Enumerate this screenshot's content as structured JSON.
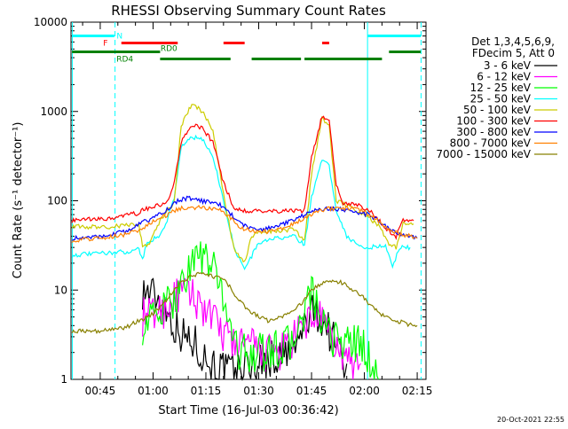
{
  "chart_data": {
    "type": "line",
    "title": "RHESSI Observing Summary Count Rates",
    "xlabel": "Start Time (16-Jul-03 00:36:42)",
    "ylabel": "Count Rate (s⁻¹ detector⁻¹)",
    "y_scale": "log",
    "xlim_minutes": [
      36.7,
      137.5
    ],
    "ylim": [
      1,
      10000
    ],
    "x_ticks": [
      {
        "label": "00:45",
        "minutes": 45
      },
      {
        "label": "01:00",
        "minutes": 60
      },
      {
        "label": "01:15",
        "minutes": 75
      },
      {
        "label": "01:30",
        "minutes": 90
      },
      {
        "label": "01:45",
        "minutes": 105
      },
      {
        "label": "02:00",
        "minutes": 120
      },
      {
        "label": "02:15",
        "minutes": 135
      }
    ],
    "y_ticks": [
      {
        "label": "1",
        "value": 1
      },
      {
        "label": "10",
        "value": 10
      },
      {
        "label": "100",
        "value": 100
      },
      {
        "label": "1000",
        "value": 1000
      },
      {
        "label": "10000",
        "value": 10000
      }
    ],
    "legend": {
      "position": "right",
      "header": [
        "Det 1,3,4,5,6,9,",
        "FDecim 5, Att 0"
      ]
    },
    "series": [
      {
        "name": "3 - 6 keV",
        "color": "#000000",
        "points": [
          [
            57,
            10
          ],
          [
            60,
            9
          ],
          [
            63,
            7
          ],
          [
            66,
            4
          ],
          [
            69,
            3
          ],
          [
            72,
            2.5
          ],
          [
            75,
            1.7
          ],
          [
            78,
            1.4
          ],
          [
            81,
            1.2
          ],
          [
            100,
            2
          ],
          [
            103,
            4
          ],
          [
            106,
            6
          ],
          [
            109,
            4
          ],
          [
            112,
            2.5
          ],
          [
            115,
            1.5
          ]
        ]
      },
      {
        "name": "6 - 12 keV",
        "color": "#ff00ff",
        "points": [
          [
            57,
            5
          ],
          [
            60,
            5.5
          ],
          [
            63,
            6
          ],
          [
            66,
            8
          ],
          [
            69,
            9.5
          ],
          [
            72,
            8
          ],
          [
            75,
            6
          ],
          [
            78,
            4
          ],
          [
            81,
            3
          ],
          [
            84,
            2.5
          ],
          [
            87,
            2.5
          ],
          [
            90,
            2
          ],
          [
            93,
            2
          ],
          [
            96,
            2
          ],
          [
            99,
            2.5
          ],
          [
            102,
            3.5
          ],
          [
            105,
            5
          ],
          [
            107,
            5
          ],
          [
            110,
            3
          ],
          [
            113,
            2
          ],
          [
            116,
            1.5
          ],
          [
            119,
            1.5
          ]
        ]
      },
      {
        "name": "12 - 25 keV",
        "color": "#00ff00",
        "points": [
          [
            57,
            4
          ],
          [
            60,
            5
          ],
          [
            63,
            6
          ],
          [
            66,
            8
          ],
          [
            69,
            14
          ],
          [
            72,
            25
          ],
          [
            75,
            22
          ],
          [
            78,
            15
          ],
          [
            81,
            6
          ],
          [
            84,
            2
          ],
          [
            87,
            2
          ],
          [
            90,
            2
          ],
          [
            93,
            2
          ],
          [
            96,
            2.3
          ],
          [
            99,
            2.5
          ],
          [
            102,
            4
          ],
          [
            104,
            8
          ],
          [
            105,
            9
          ],
          [
            106,
            7
          ],
          [
            108,
            4
          ],
          [
            110,
            3
          ],
          [
            113,
            2.8
          ],
          [
            116,
            2.5
          ],
          [
            119,
            2.5
          ],
          [
            122,
            1.5
          ],
          [
            124,
            1
          ]
        ]
      },
      {
        "name": "25 - 50 keV",
        "color": "#00ffff",
        "points": [
          [
            37,
            24.5
          ],
          [
            40,
            25
          ],
          [
            43,
            25.5
          ],
          [
            46,
            26
          ],
          [
            50,
            26.5
          ],
          [
            53,
            27
          ],
          [
            56,
            29
          ],
          [
            57,
            22
          ],
          [
            58,
            32
          ],
          [
            62,
            42
          ],
          [
            64,
            60
          ],
          [
            66,
            110
          ],
          [
            68,
            400
          ],
          [
            71,
            520
          ],
          [
            74,
            480
          ],
          [
            77,
            320
          ],
          [
            80,
            100
          ],
          [
            83,
            30
          ],
          [
            86,
            17
          ],
          [
            88,
            24
          ],
          [
            90,
            34
          ],
          [
            95,
            38
          ],
          [
            100,
            40
          ],
          [
            103,
            32
          ],
          [
            105,
            110
          ],
          [
            108,
            300
          ],
          [
            110,
            240
          ],
          [
            112,
            80
          ],
          [
            115,
            40
          ],
          [
            119,
            30
          ],
          [
            121,
            30
          ],
          [
            124,
            31
          ],
          [
            126,
            32
          ],
          [
            128,
            18
          ],
          [
            130,
            30
          ],
          [
            133,
            30
          ]
        ]
      },
      {
        "name": "50 - 100 keV",
        "color": "#cccc00",
        "points": [
          [
            37,
            52
          ],
          [
            40,
            51
          ],
          [
            44,
            51
          ],
          [
            48,
            51
          ],
          [
            52,
            53
          ],
          [
            56,
            55
          ],
          [
            57,
            30
          ],
          [
            59,
            34
          ],
          [
            62,
            60
          ],
          [
            66,
            95
          ],
          [
            68,
            700
          ],
          [
            71,
            1200
          ],
          [
            74,
            1000
          ],
          [
            77,
            600
          ],
          [
            80,
            120
          ],
          [
            83,
            28
          ],
          [
            86,
            20
          ],
          [
            88,
            40
          ],
          [
            90,
            45
          ],
          [
            95,
            46
          ],
          [
            100,
            48
          ],
          [
            103,
            35
          ],
          [
            105,
            200
          ],
          [
            108,
            850
          ],
          [
            110,
            700
          ],
          [
            112,
            100
          ],
          [
            115,
            90
          ],
          [
            120,
            70
          ],
          [
            124,
            54
          ],
          [
            127,
            32
          ],
          [
            129,
            30
          ],
          [
            131,
            55
          ],
          [
            134,
            55
          ]
        ]
      },
      {
        "name": "100 - 300 keV",
        "color": "#ff0000",
        "points": [
          [
            37,
            60
          ],
          [
            40,
            61
          ],
          [
            43,
            62
          ],
          [
            46,
            62
          ],
          [
            50,
            65
          ],
          [
            53,
            70
          ],
          [
            56,
            72
          ],
          [
            57,
            80
          ],
          [
            60,
            85
          ],
          [
            64,
            95
          ],
          [
            66,
            160
          ],
          [
            68,
            450
          ],
          [
            71,
            700
          ],
          [
            74,
            650
          ],
          [
            77,
            450
          ],
          [
            80,
            160
          ],
          [
            83,
            82
          ],
          [
            86,
            78
          ],
          [
            90,
            76
          ],
          [
            95,
            76
          ],
          [
            100,
            78
          ],
          [
            103,
            78
          ],
          [
            105,
            300
          ],
          [
            108,
            900
          ],
          [
            110,
            800
          ],
          [
            112,
            150
          ],
          [
            114,
            95
          ],
          [
            118,
            90
          ],
          [
            122,
            75
          ],
          [
            126,
            50
          ],
          [
            129,
            40
          ],
          [
            131,
            62
          ],
          [
            134,
            60
          ]
        ]
      },
      {
        "name": "300 - 800 keV",
        "color": "#0000ff",
        "points": [
          [
            37,
            38
          ],
          [
            40,
            38
          ],
          [
            44,
            40
          ],
          [
            48,
            42
          ],
          [
            52,
            45
          ],
          [
            56,
            55
          ],
          [
            60,
            64
          ],
          [
            64,
            80
          ],
          [
            67,
            100
          ],
          [
            70,
            108
          ],
          [
            73,
            100
          ],
          [
            76,
            98
          ],
          [
            79,
            90
          ],
          [
            82,
            72
          ],
          [
            85,
            55
          ],
          [
            88,
            49
          ],
          [
            91,
            48
          ],
          [
            94,
            50
          ],
          [
            97,
            55
          ],
          [
            100,
            62
          ],
          [
            103,
            70
          ],
          [
            106,
            80
          ],
          [
            110,
            82
          ],
          [
            114,
            80
          ],
          [
            118,
            75
          ],
          [
            121,
            70
          ],
          [
            124,
            60
          ],
          [
            127,
            48
          ],
          [
            130,
            42
          ],
          [
            133,
            40
          ],
          [
            135,
            38
          ]
        ]
      },
      {
        "name": "800 - 7000 keV",
        "color": "#ff8000",
        "points": [
          [
            37,
            36
          ],
          [
            40,
            37
          ],
          [
            44,
            38
          ],
          [
            48,
            40
          ],
          [
            52,
            42
          ],
          [
            56,
            47
          ],
          [
            60,
            58
          ],
          [
            64,
            70
          ],
          [
            67,
            80
          ],
          [
            70,
            85
          ],
          [
            73,
            84
          ],
          [
            76,
            82
          ],
          [
            79,
            78
          ],
          [
            82,
            65
          ],
          [
            85,
            50
          ],
          [
            88,
            46
          ],
          [
            91,
            45
          ],
          [
            94,
            46
          ],
          [
            97,
            50
          ],
          [
            100,
            56
          ],
          [
            103,
            65
          ],
          [
            106,
            75
          ],
          [
            110,
            82
          ],
          [
            114,
            83
          ],
          [
            118,
            80
          ],
          [
            121,
            72
          ],
          [
            124,
            60
          ],
          [
            127,
            48
          ],
          [
            130,
            42
          ],
          [
            133,
            40
          ],
          [
            135,
            38
          ]
        ]
      },
      {
        "name": "7000 - 15000 keV",
        "color": "#888000",
        "points": [
          [
            37,
            3.5
          ],
          [
            40,
            3.5
          ],
          [
            44,
            3.5
          ],
          [
            48,
            3.6
          ],
          [
            52,
            3.8
          ],
          [
            56,
            4.5
          ],
          [
            60,
            5.5
          ],
          [
            63,
            7
          ],
          [
            66,
            10
          ],
          [
            69,
            13
          ],
          [
            72,
            15
          ],
          [
            75,
            15
          ],
          [
            78,
            14
          ],
          [
            81,
            12
          ],
          [
            84,
            8
          ],
          [
            87,
            6
          ],
          [
            90,
            5
          ],
          [
            93,
            4.5
          ],
          [
            96,
            5
          ],
          [
            99,
            5.5
          ],
          [
            102,
            7
          ],
          [
            105,
            10
          ],
          [
            108,
            12
          ],
          [
            111,
            13
          ],
          [
            114,
            12
          ],
          [
            117,
            10
          ],
          [
            120,
            8
          ],
          [
            123,
            6
          ],
          [
            126,
            5
          ],
          [
            129,
            4.5
          ],
          [
            132,
            4.2
          ],
          [
            135,
            4
          ]
        ]
      }
    ],
    "annotations": [
      {
        "label": "N",
        "color": "#00ffff",
        "row": "upper",
        "ranges": [
          [
            37,
            49
          ]
        ],
        "label_minutes": 50.5
      },
      {
        "label": "N",
        "color": "#00ffff",
        "row": "upper",
        "ranges": [
          [
            121,
            136
          ]
        ],
        "label_minutes": null
      },
      {
        "label": "F",
        "color": "#ff0000",
        "row": "middle",
        "ranges": [
          [
            51,
            67
          ],
          [
            80,
            86
          ],
          [
            108,
            110
          ]
        ],
        "label_minutes": 46.5
      },
      {
        "label": "RD0",
        "color": "#008000",
        "row": "lower",
        "ranges": [
          [
            37,
            62
          ],
          [
            127,
            136
          ]
        ],
        "label_minutes": 64.5
      },
      {
        "label": "RD4",
        "color": "#008000",
        "row": "bottom",
        "ranges": [
          [
            62,
            82
          ],
          [
            88,
            102
          ],
          [
            103,
            125
          ]
        ],
        "label_minutes": 52
      }
    ],
    "vertical_markers": [
      {
        "minutes": 37.1,
        "color": "#00ffff",
        "style": "solid"
      },
      {
        "minutes": 49.2,
        "color": "#00ffff",
        "style": "dashed"
      },
      {
        "minutes": 120.9,
        "color": "#00ffff",
        "style": "solid"
      },
      {
        "minutes": 136.1,
        "color": "#00ffff",
        "style": "dashed"
      }
    ]
  },
  "timestamp": "20-Oct-2021 22:55"
}
